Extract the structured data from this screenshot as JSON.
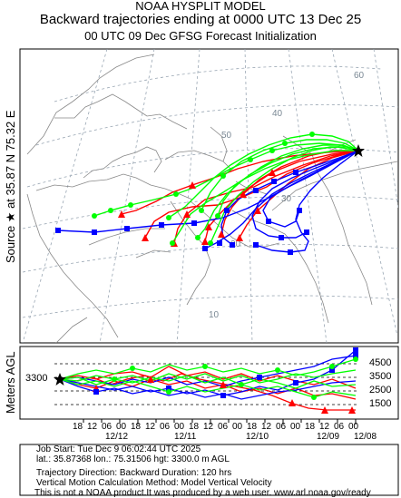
{
  "header": {
    "line1": "NOAA HYSPLIT MODEL",
    "line2": "Backward trajectories ending at 0000 UTC 13 Dec 25",
    "line3": "00 UTC 09 Dec    GFSG  Forecast Initialization"
  },
  "map": {
    "source_label": "Source ★ at   35.87 N   75.32 E",
    "source": {
      "lat": 35.87,
      "lon": 75.32
    },
    "lat_labels": [
      "60",
      "50",
      "40",
      "30",
      "20",
      "10"
    ],
    "colors": {
      "red": "#ff0000",
      "blue": "#0000ff",
      "green": "#00ff00",
      "background": "#ffffff",
      "coast": "#888888",
      "grid": "#99a6b3"
    }
  },
  "vertical": {
    "ylabel": "Meters AGL",
    "start_height": "3300",
    "yticks": [
      "4500",
      "3500",
      "2500",
      "1500"
    ],
    "hours": [
      "18",
      "12",
      "06",
      "00",
      "18",
      "12",
      "06",
      "00",
      "18",
      "12",
      "06",
      "00",
      "18",
      "12",
      "06",
      "00",
      "18",
      "12",
      "06",
      "00"
    ],
    "dates": [
      "12/12",
      "12/11",
      "12/10",
      "12/09",
      "12/08"
    ]
  },
  "info": {
    "line1": "Job Start: Tue Dec  9 06:02:44 UTC 2025",
    "line2": "lat.: 35.87368   lon.: 75.31506   hgt: 3300.0 m AGL",
    "line3": "Trajectory Direction: Backward       Duration: 120 hrs",
    "line4": "Vertical Motion Calculation Method: Model Vertical Velocity",
    "line5": "This is not a NOAA product.It was produced by a web user. www.arl.noaa.gov/ready"
  }
}
